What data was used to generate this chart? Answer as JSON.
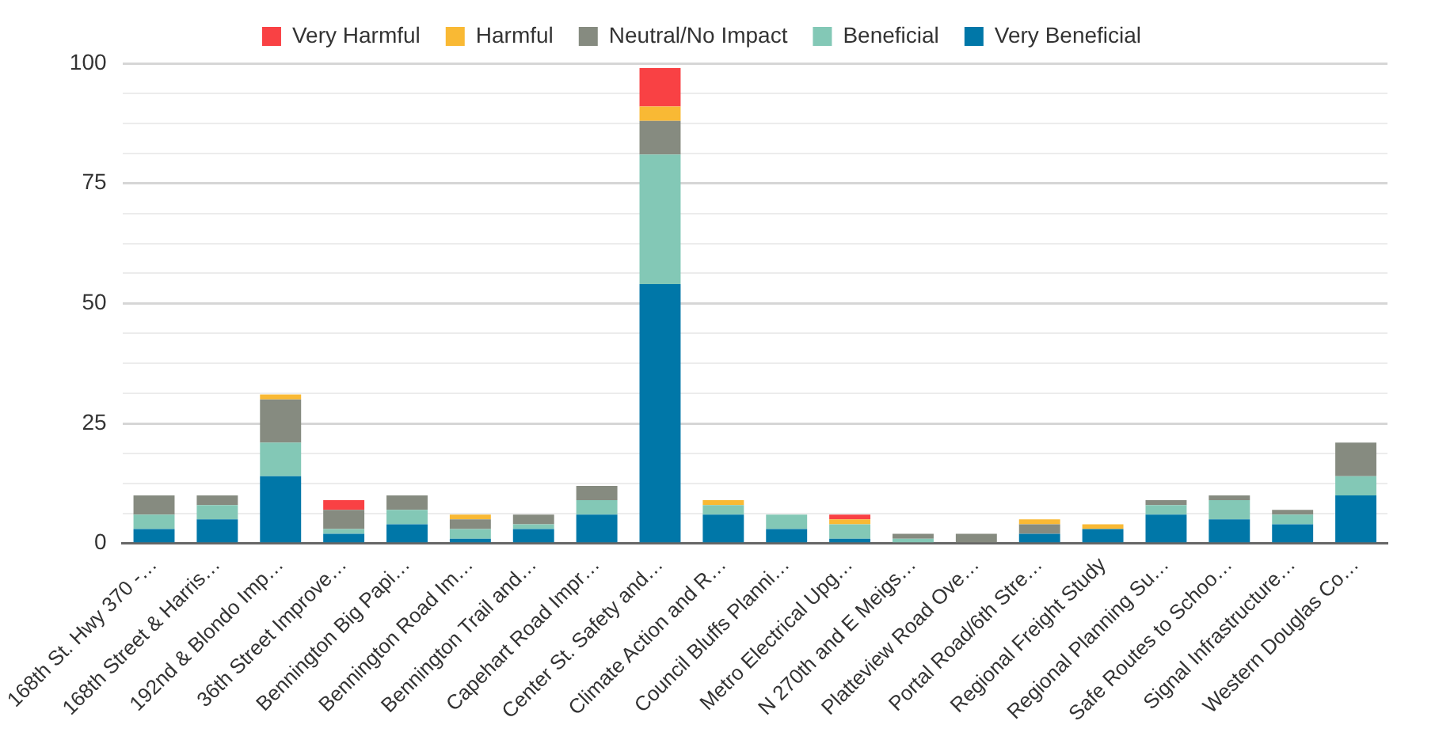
{
  "chart_data": {
    "type": "bar",
    "stacked": true,
    "legend": "top",
    "grid": "y",
    "categories": [
      "168th St. Hwy 370 -…",
      "168th Street & Harris…",
      "192nd & Blondo Imp…",
      "36th Street Improve…",
      "Bennington Big Papi…",
      "Bennington Road Im…",
      "Bennington Trail and…",
      "Capehart Road Impr…",
      "Center St. Safety and…",
      "Climate Action and R…",
      "Council Bluffs Planni…",
      "Metro Electrical Upg…",
      "N 270th and E Meigs…",
      "Platteview Road Ove…",
      "Portal Road/6th Stre…",
      "Regional Freight Study",
      "Regional Planning Su…",
      "Safe Routes to Schoo…",
      "Signal Infrastructure…",
      "Western Douglas Co…"
    ],
    "ylim": [
      0,
      100
    ],
    "yticks": [
      0,
      {
        "value": 6.25,
        "label": null
      },
      {
        "value": 12.5,
        "label": null
      },
      {
        "value": 18.75,
        "label": null
      },
      25,
      {
        "value": 31.25,
        "label": null
      },
      {
        "value": 37.5,
        "label": null
      },
      {
        "value": 43.75,
        "label": null
      },
      50,
      {
        "value": 56.25,
        "label": null
      },
      {
        "value": 62.5,
        "label": null
      },
      {
        "value": 68.75,
        "label": null
      },
      75,
      {
        "value": 81.25,
        "label": null
      },
      {
        "value": 87.5,
        "label": null
      },
      {
        "value": 93.75,
        "label": null
      },
      100
    ],
    "series": [
      {
        "name": "Very Beneficial",
        "color": "#0077a8",
        "values": [
          3,
          5,
          14,
          2,
          4,
          1,
          3,
          6,
          54,
          6,
          3,
          1,
          0,
          0,
          2,
          3,
          6,
          5,
          4,
          10
        ]
      },
      {
        "name": "Beneficial",
        "color": "#83c8b6",
        "values": [
          3,
          3,
          7,
          1,
          3,
          2,
          1,
          3,
          27,
          2,
          3,
          3,
          1,
          0,
          0,
          0,
          2,
          4,
          2,
          4
        ]
      },
      {
        "name": "Neutral/No Impact",
        "color": "#868b80",
        "values": [
          4,
          2,
          9,
          4,
          3,
          2,
          2,
          3,
          7,
          0,
          0,
          0,
          1,
          2,
          2,
          0,
          1,
          1,
          1,
          7
        ]
      },
      {
        "name": "Harmful",
        "color": "#f9b934",
        "values": [
          0,
          0,
          1,
          0,
          0,
          1,
          0,
          0,
          3,
          1,
          0,
          1,
          0,
          0,
          1,
          1,
          0,
          0,
          0,
          0
        ]
      },
      {
        "name": "Very Harmful",
        "color": "#f94144",
        "values": [
          0,
          0,
          0,
          2,
          0,
          0,
          0,
          0,
          8,
          0,
          0,
          1,
          0,
          0,
          0,
          0,
          0,
          0,
          0,
          0
        ]
      }
    ]
  }
}
